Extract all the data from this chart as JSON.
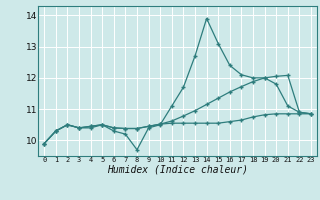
{
  "title": "",
  "xlabel": "Humidex (Indice chaleur)",
  "ylabel": "",
  "bg_color": "#cee9e9",
  "grid_color": "#ffffff",
  "grid_color_minor": "#ddeaea",
  "line_color": "#2e7d7d",
  "xlim": [
    -0.5,
    23.5
  ],
  "ylim": [
    9.5,
    14.3
  ],
  "yticks": [
    10,
    11,
    12,
    13,
    14
  ],
  "xticks": [
    0,
    1,
    2,
    3,
    4,
    5,
    6,
    7,
    8,
    9,
    10,
    11,
    12,
    13,
    14,
    15,
    16,
    17,
    18,
    19,
    20,
    21,
    22,
    23
  ],
  "line1_y": [
    9.9,
    10.3,
    10.5,
    10.4,
    10.4,
    10.5,
    10.3,
    10.2,
    9.7,
    10.4,
    10.5,
    11.1,
    11.7,
    12.7,
    13.9,
    13.1,
    12.4,
    12.1,
    12.0,
    12.0,
    11.8,
    11.1,
    10.9,
    10.85
  ],
  "line2_y": [
    9.9,
    10.3,
    10.5,
    10.4,
    10.45,
    10.5,
    10.4,
    10.38,
    10.38,
    10.45,
    10.52,
    10.62,
    10.78,
    10.95,
    11.15,
    11.35,
    11.55,
    11.72,
    11.88,
    12.0,
    12.05,
    12.08,
    10.9,
    10.85
  ],
  "line3_y": [
    9.9,
    10.3,
    10.5,
    10.4,
    10.45,
    10.5,
    10.4,
    10.38,
    10.38,
    10.45,
    10.52,
    10.55,
    10.55,
    10.55,
    10.55,
    10.55,
    10.6,
    10.65,
    10.75,
    10.82,
    10.85,
    10.85,
    10.85,
    10.85
  ]
}
